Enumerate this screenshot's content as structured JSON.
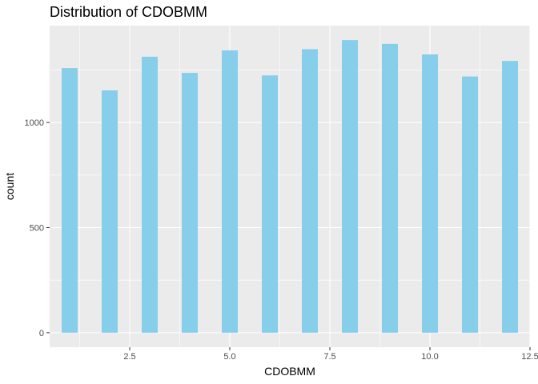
{
  "chart_data": {
    "type": "bar",
    "title": "Distribution of CDOBMM",
    "xlabel": "CDOBMM",
    "ylabel": "count",
    "x": [
      1,
      2,
      3,
      4,
      5,
      6,
      7,
      8,
      9,
      10,
      11,
      12
    ],
    "values": [
      1259,
      1153,
      1313,
      1236,
      1343,
      1224,
      1349,
      1392,
      1374,
      1324,
      1219,
      1293
    ],
    "xlim": [
      0.5,
      12.5
    ],
    "ylim": [
      -69,
      1461
    ],
    "x_ticks": [
      2.5,
      5.0,
      7.5,
      10.0,
      12.5
    ],
    "x_tick_labels": [
      "2.5",
      "5.0",
      "7.5",
      "10.0",
      "12.5"
    ],
    "y_ticks": [
      0,
      500,
      1000
    ],
    "y_tick_labels": [
      "0",
      "500",
      "1000"
    ],
    "grid": true,
    "colors": {
      "bar": "#87ceeb",
      "panel": "#ebebeb",
      "grid_major": "#ffffff"
    }
  }
}
